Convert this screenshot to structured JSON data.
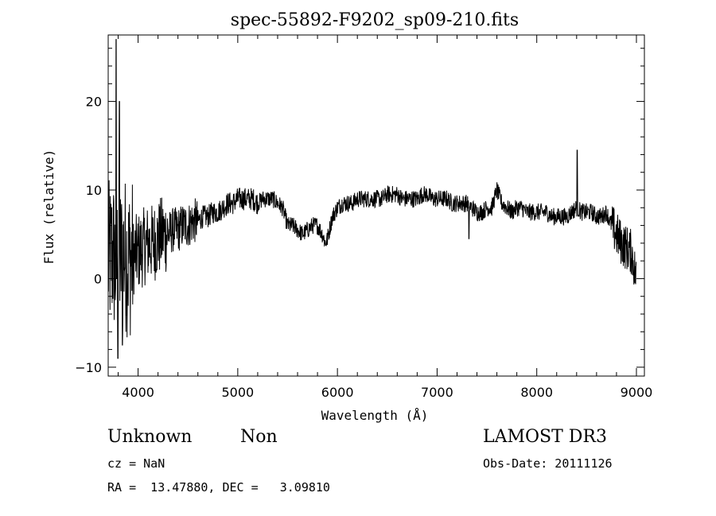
{
  "chart_data": {
    "type": "line",
    "title": "spec-55892-F9202_sp09-210.fits",
    "xlabel": "Wavelength (Å)",
    "ylabel": "Flux (relative)",
    "xlim": [
      3700,
      9080
    ],
    "ylim": [
      -11,
      27.5
    ],
    "xticks": [
      4000,
      5000,
      6000,
      7000,
      8000,
      9000
    ],
    "yticks": [
      -10,
      0,
      10,
      20
    ],
    "xtick_labels": [
      "4000",
      "5000",
      "6000",
      "7000",
      "8000",
      "9000"
    ],
    "ytick_labels": [
      "−10",
      "0",
      "10",
      "20"
    ],
    "grid": false,
    "legend": "none",
    "series": [
      {
        "x": [
          3700,
          3750,
          3780,
          3800,
          3830,
          3860,
          3900,
          3950,
          4000,
          4050,
          4100,
          4150,
          4200,
          4250,
          4300,
          4350,
          4400,
          4450,
          4500,
          4550,
          4600,
          4650,
          4700,
          4750,
          4800,
          4850,
          4900,
          4950,
          5000,
          5050,
          5100,
          5150,
          5200,
          5250,
          5300,
          5350,
          5400,
          5450,
          5500,
          5550,
          5600,
          5650,
          5700,
          5750,
          5800,
          5850,
          5880,
          5900,
          5950,
          6000,
          6050,
          6100,
          6150,
          6200,
          6250,
          6300,
          6350,
          6400,
          6450,
          6500,
          6550,
          6600,
          6650,
          6700,
          6750,
          6800,
          6850,
          6900,
          6950,
          7000,
          7050,
          7100,
          7150,
          7200,
          7250,
          7300,
          7350,
          7400,
          7450,
          7500,
          7550,
          7600,
          7650,
          7700,
          7750,
          7800,
          7850,
          7900,
          7950,
          8000,
          8050,
          8100,
          8150,
          8200,
          8250,
          8300,
          8350,
          8400,
          8450,
          8500,
          8550,
          8600,
          8650,
          8700,
          8750,
          8800,
          8850,
          8900,
          8950,
          9000
        ],
        "y": [
          2,
          3,
          1,
          3,
          2,
          3,
          2,
          2.5,
          3,
          3.5,
          4,
          4,
          4.5,
          5,
          5,
          5.5,
          5.5,
          6,
          6,
          6.5,
          6.5,
          7,
          7,
          7.5,
          7.5,
          8,
          8.5,
          8.5,
          9,
          9,
          9,
          9,
          8.5,
          9,
          9,
          9,
          8.5,
          8,
          6,
          6,
          5.5,
          5,
          5.5,
          6,
          6,
          5,
          4,
          4.5,
          7,
          8,
          8.5,
          8.5,
          8.5,
          9,
          9,
          9,
          9,
          9,
          9,
          9.5,
          9.5,
          9.5,
          9,
          9,
          9,
          9,
          9.5,
          9.5,
          9,
          9,
          9,
          9,
          8.5,
          8.5,
          8.5,
          8.5,
          8,
          7.5,
          7.5,
          8,
          8,
          10,
          8.5,
          8,
          7.5,
          8,
          8,
          7.5,
          7.5,
          7.5,
          7.5,
          7.5,
          7,
          7,
          7,
          7,
          7.5,
          8,
          7.5,
          7.5,
          7.5,
          7,
          7,
          7.5,
          6,
          5,
          4,
          3.5,
          3,
          0
        ]
      }
    ]
  },
  "info": {
    "object_class": "Unknown",
    "object_subclass": "Non",
    "cz": "cz = NaN",
    "coords": "RA =  13.47880, DEC =   3.09810",
    "survey": "LAMOST DR3",
    "obs_date": "Obs-Date: 20111126"
  }
}
